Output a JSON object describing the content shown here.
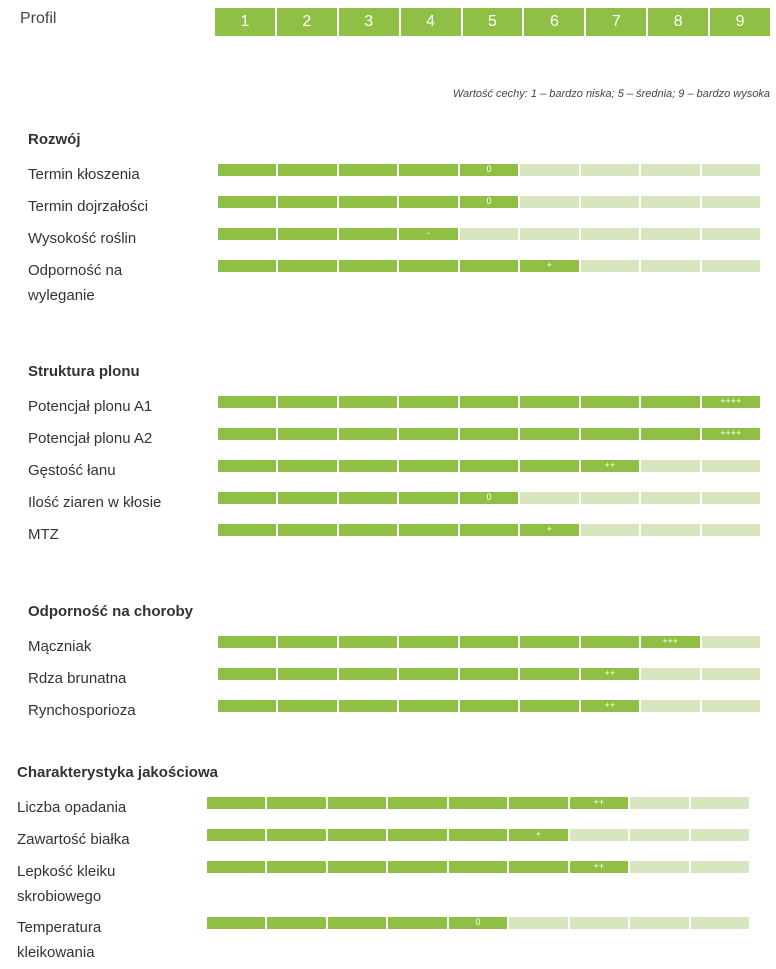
{
  "header": {
    "profile_label": "Profil",
    "scale": [
      "1",
      "2",
      "3",
      "4",
      "5",
      "6",
      "7",
      "8",
      "9"
    ],
    "legend": "Wartość cechy: 1 – bardzo niska; 5 – średnia; 9 – bardzo wysoka"
  },
  "colors": {
    "filled": "#8fc045",
    "empty": "#d8e6bf",
    "text": "#333333"
  },
  "chart_data": {
    "type": "bar",
    "scale_range": [
      1,
      9
    ],
    "sections": [
      {
        "title": "Rozwój",
        "rows": [
          {
            "label": "Termin kłoszenia",
            "value": 5,
            "mark": "0"
          },
          {
            "label": "Termin dojrzałości",
            "value": 5,
            "mark": "0"
          },
          {
            "label": "Wysokość roślin",
            "value": 4,
            "mark": "-"
          },
          {
            "label": "Odporność na wyleganie",
            "value": 6,
            "mark": "+"
          }
        ]
      },
      {
        "title": "Struktura plonu",
        "rows": [
          {
            "label": "Potencjał plonu A1",
            "value": 9,
            "mark": "++++"
          },
          {
            "label": "Potencjał plonu A2",
            "value": 9,
            "mark": "++++"
          },
          {
            "label": "Gęstość łanu",
            "value": 7,
            "mark": "++"
          },
          {
            "label": "Ilość ziaren w kłosie",
            "value": 5,
            "mark": "0"
          },
          {
            "label": "MTZ",
            "value": 6,
            "mark": "+"
          }
        ]
      },
      {
        "title": "Odporność na choroby",
        "rows": [
          {
            "label": "Mączniak",
            "value": 8,
            "mark": "+++"
          },
          {
            "label": "Rdza brunatna",
            "value": 7,
            "mark": "++"
          },
          {
            "label": "Rynchosporioza",
            "value": 7,
            "mark": "++"
          }
        ]
      },
      {
        "title": "Charakterystyka jakościowa",
        "rows": [
          {
            "label": "Liczba opadania",
            "value": 7,
            "mark": "++"
          },
          {
            "label": "Zawartość białka",
            "value": 6,
            "mark": "+"
          },
          {
            "label": "Lepkość kleiku skrobiowego",
            "value": 7,
            "mark": "++"
          },
          {
            "label": "Temperatura kleikowania",
            "value": 5,
            "mark": "0"
          }
        ]
      }
    ]
  }
}
